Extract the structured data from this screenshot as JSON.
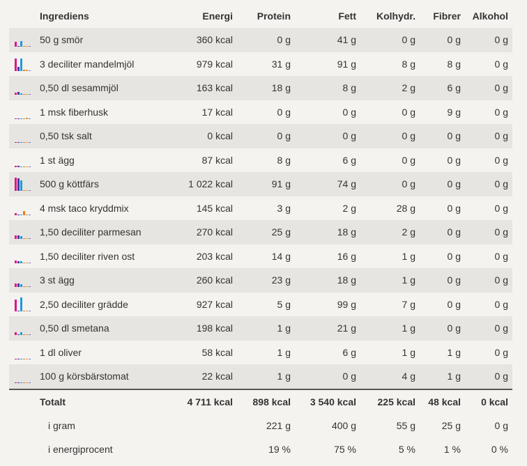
{
  "headers": {
    "ingredients": "Ingrediens",
    "energy": "Energi",
    "protein": "Protein",
    "fat": "Fett",
    "carbs": "Kolhydr.",
    "fiber": "Fibrer",
    "alcohol": "Alkohol"
  },
  "rows": [
    {
      "name": "50 g smör",
      "energy": "360 kcal",
      "protein": "0 g",
      "fat": "41 g",
      "carbs": "0 g",
      "fiber": "0 g",
      "alcohol": "0 g"
    },
    {
      "name": "3 deciliter mandelmjöl",
      "energy": "979 kcal",
      "protein": "31 g",
      "fat": "91 g",
      "carbs": "8 g",
      "fiber": "8 g",
      "alcohol": "0 g"
    },
    {
      "name": "0,50 dl sesammjöl",
      "energy": "163 kcal",
      "protein": "18 g",
      "fat": "8 g",
      "carbs": "2 g",
      "fiber": "6 g",
      "alcohol": "0 g"
    },
    {
      "name": "1 msk fiberhusk",
      "energy": "17 kcal",
      "protein": "0 g",
      "fat": "0 g",
      "carbs": "0 g",
      "fiber": "9 g",
      "alcohol": "0 g"
    },
    {
      "name": "0,50 tsk salt",
      "energy": "0 kcal",
      "protein": "0 g",
      "fat": "0 g",
      "carbs": "0 g",
      "fiber": "0 g",
      "alcohol": "0 g"
    },
    {
      "name": "1 st ägg",
      "energy": "87 kcal",
      "protein": "8 g",
      "fat": "6 g",
      "carbs": "0 g",
      "fiber": "0 g",
      "alcohol": "0 g"
    },
    {
      "name": "500 g köttfärs",
      "energy": "1 022 kcal",
      "protein": "91 g",
      "fat": "74 g",
      "carbs": "0 g",
      "fiber": "0 g",
      "alcohol": "0 g"
    },
    {
      "name": "4 msk taco kryddmix",
      "energy": "145 kcal",
      "protein": "3 g",
      "fat": "2 g",
      "carbs": "28 g",
      "fiber": "0 g",
      "alcohol": "0 g"
    },
    {
      "name": "1,50 deciliter parmesan",
      "energy": "270 kcal",
      "protein": "25 g",
      "fat": "18 g",
      "carbs": "2 g",
      "fiber": "0 g",
      "alcohol": "0 g"
    },
    {
      "name": "1,50 deciliter riven ost",
      "energy": "203 kcal",
      "protein": "14 g",
      "fat": "16 g",
      "carbs": "1 g",
      "fiber": "0 g",
      "alcohol": "0 g"
    },
    {
      "name": "3 st ägg",
      "energy": "260 kcal",
      "protein": "23 g",
      "fat": "18 g",
      "carbs": "1 g",
      "fiber": "0 g",
      "alcohol": "0 g"
    },
    {
      "name": "2,50 deciliter grädde",
      "energy": "927 kcal",
      "protein": "5 g",
      "fat": "99 g",
      "carbs": "7 g",
      "fiber": "0 g",
      "alcohol": "0 g"
    },
    {
      "name": "0,50 dl smetana",
      "energy": "198 kcal",
      "protein": "1 g",
      "fat": "21 g",
      "carbs": "1 g",
      "fiber": "0 g",
      "alcohol": "0 g"
    },
    {
      "name": "1 dl oliver",
      "energy": "58 kcal",
      "protein": "1 g",
      "fat": "6 g",
      "carbs": "1 g",
      "fiber": "1 g",
      "alcohol": "0 g"
    },
    {
      "name": "100 g körsbärstomat",
      "energy": "22 kcal",
      "protein": "1 g",
      "fat": "0 g",
      "carbs": "4 g",
      "fiber": "1 g",
      "alcohol": "0 g"
    }
  ],
  "total": {
    "label": "Totalt",
    "energy": "4 711 kcal",
    "protein": "898 kcal",
    "fat": "3 540 kcal",
    "carbs": "225 kcal",
    "fiber": "48 kcal",
    "alcohol": "0 kcal"
  },
  "grams": {
    "label": "i gram",
    "protein": "221 g",
    "fat": "400 g",
    "carbs": "55 g",
    "fiber": "25 g",
    "alcohol": "0 g"
  },
  "percent": {
    "label": "i energiprocent",
    "protein": "19 %",
    "fat": "75 %",
    "carbs": "5 %",
    "fiber": "1 %",
    "alcohol": "0 %"
  },
  "mini_chart": {
    "series_order": [
      "energy",
      "protein",
      "fat",
      "carbs",
      "fiber",
      "alcohol"
    ],
    "colors": {
      "energy": "#e0128a",
      "protein": "#3e3e9c",
      "fat": "#1e9ae0",
      "carbs": "#f07a1c",
      "fiber": "#c7a33c",
      "alcohol": "#9a6fd6"
    }
  }
}
